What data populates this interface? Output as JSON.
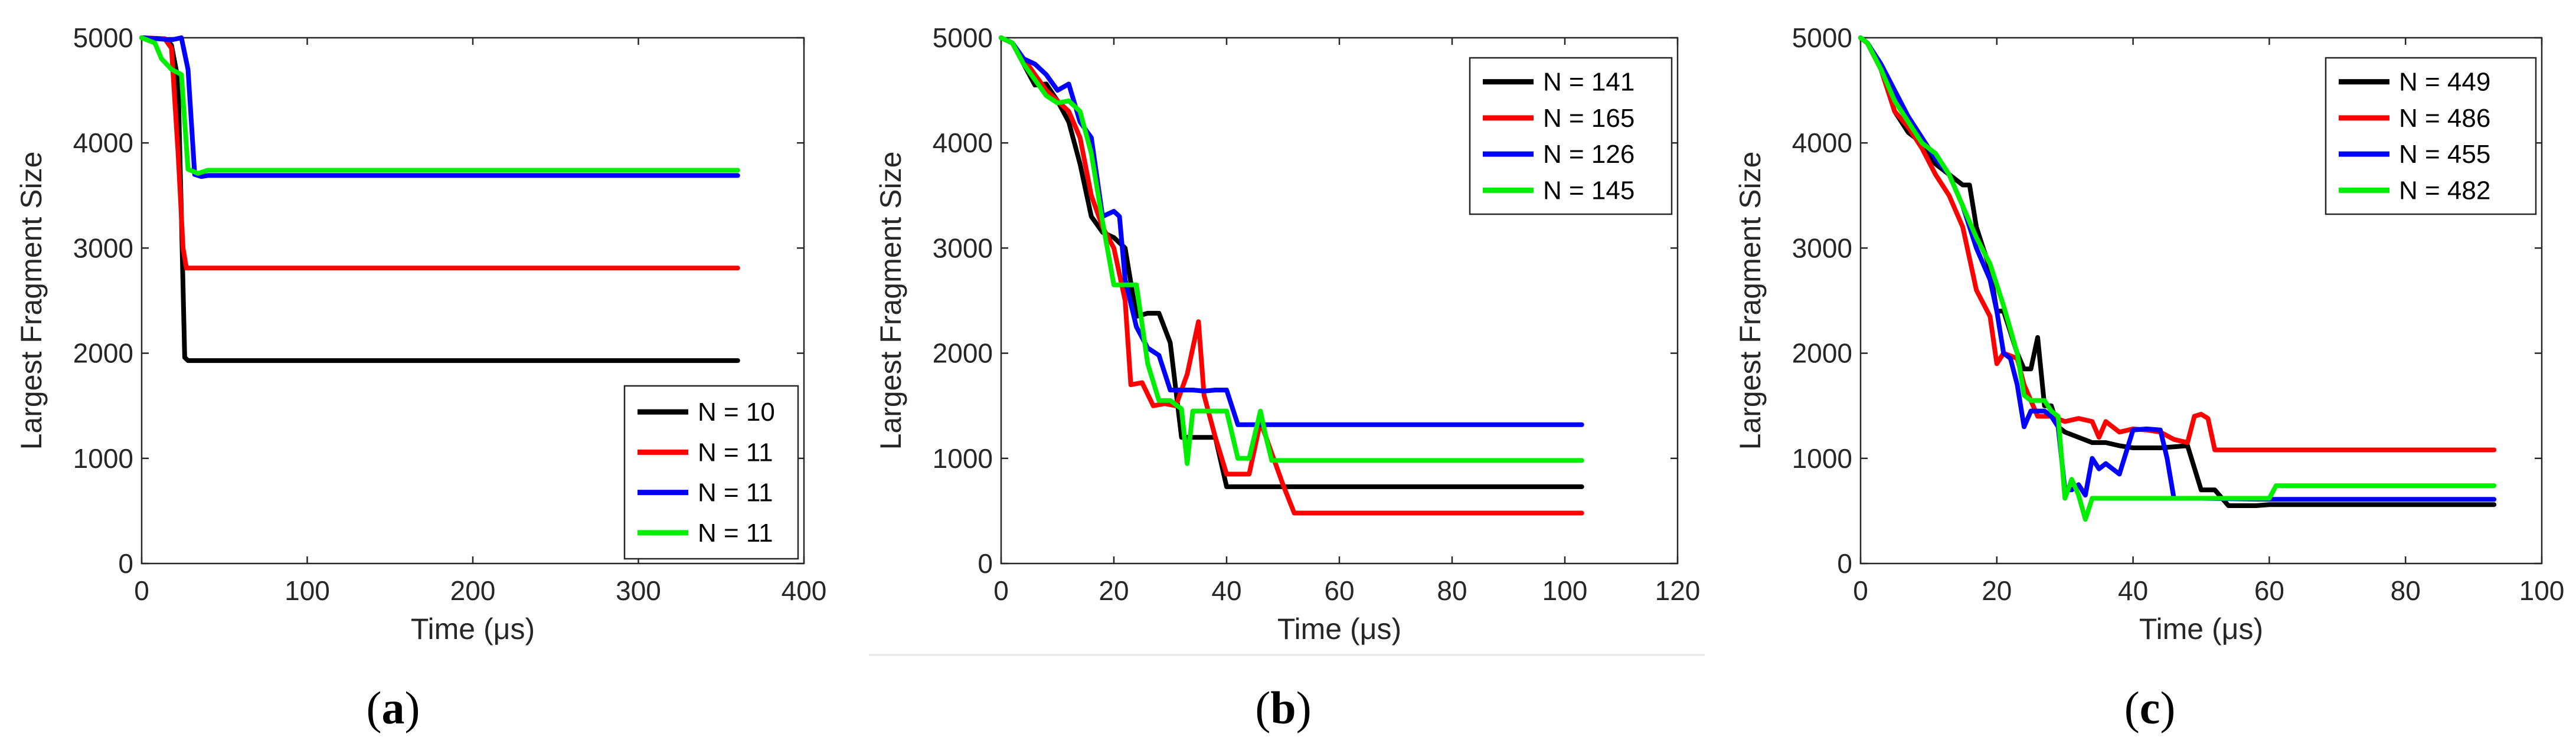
{
  "chart_data": [
    {
      "type": "line",
      "panel_label": "a",
      "xlabel": "Time (μs)",
      "ylabel": "Largest Fragment Size",
      "xlim": [
        0,
        400
      ],
      "ylim": [
        0,
        5000
      ],
      "xticks": [
        0,
        100,
        200,
        300,
        400
      ],
      "yticks": [
        0,
        1000,
        2000,
        3000,
        4000,
        5000
      ],
      "legend_position": "bottom-right",
      "series": [
        {
          "name": "N = 10",
          "color": "#000000",
          "x": [
            0,
            14,
            18,
            22,
            24,
            26,
            28,
            32,
            40,
            360
          ],
          "y": [
            5000,
            4990,
            4930,
            4600,
            3300,
            1960,
            1930,
            1930,
            1930,
            1930
          ]
        },
        {
          "name": "N = 11",
          "color": "#ff0000",
          "x": [
            0,
            14,
            18,
            22,
            25,
            27,
            30,
            360
          ],
          "y": [
            5000,
            4990,
            4900,
            3900,
            3000,
            2810,
            2810,
            2810
          ]
        },
        {
          "name": "N = 11",
          "color": "#0000ff",
          "x": [
            0,
            10,
            18,
            24,
            28,
            32,
            36,
            40,
            360
          ],
          "y": [
            5000,
            4990,
            4980,
            5000,
            4700,
            3700,
            3680,
            3690,
            3690
          ]
        },
        {
          "name": "N = 11",
          "color": "#00ee00",
          "x": [
            0,
            8,
            12,
            18,
            24,
            28,
            34,
            40,
            360
          ],
          "y": [
            5000,
            4950,
            4800,
            4700,
            4650,
            3750,
            3710,
            3740,
            3740
          ]
        }
      ]
    },
    {
      "type": "line",
      "panel_label": "b",
      "xlabel": "Time (μs)",
      "ylabel": "Largest Fragment Size",
      "xlim": [
        0,
        120
      ],
      "ylim": [
        0,
        5000
      ],
      "xticks": [
        0,
        20,
        40,
        60,
        80,
        100,
        120
      ],
      "yticks": [
        0,
        1000,
        2000,
        3000,
        4000,
        5000
      ],
      "legend_position": "top-right",
      "series": [
        {
          "name": "N = 141",
          "color": "#000000",
          "x": [
            0,
            2,
            4,
            6,
            8,
            10,
            12,
            14,
            16,
            18,
            20,
            22,
            24,
            26,
            28,
            30,
            32,
            34,
            36,
            38,
            40,
            42,
            103
          ],
          "y": [
            5000,
            4950,
            4750,
            4550,
            4560,
            4400,
            4200,
            3800,
            3300,
            3150,
            3100,
            3000,
            2350,
            2380,
            2380,
            2100,
            1200,
            1200,
            1200,
            1200,
            730,
            730,
            730
          ]
        },
        {
          "name": "N = 165",
          "color": "#ff0000",
          "x": [
            0,
            2,
            4,
            6,
            8,
            10,
            12,
            14,
            16,
            18,
            20,
            22,
            23,
            25,
            27,
            29,
            31,
            33,
            35,
            36,
            38,
            40,
            44,
            46,
            50,
            52,
            103
          ],
          "y": [
            5000,
            4950,
            4800,
            4650,
            4500,
            4400,
            4300,
            4050,
            3500,
            3200,
            3000,
            2500,
            1700,
            1720,
            1500,
            1520,
            1500,
            1800,
            2300,
            1600,
            1200,
            850,
            850,
            1350,
            750,
            480,
            480
          ]
        },
        {
          "name": "N = 126",
          "color": "#0000ff",
          "x": [
            0,
            2,
            4,
            6,
            8,
            10,
            12,
            14,
            16,
            18,
            20,
            21,
            22,
            24,
            26,
            28,
            30,
            32,
            34,
            36,
            38,
            40,
            42,
            44,
            103
          ],
          "y": [
            5000,
            4950,
            4800,
            4750,
            4650,
            4500,
            4560,
            4200,
            4050,
            3300,
            3350,
            3300,
            2700,
            2250,
            2050,
            1980,
            1650,
            1650,
            1650,
            1640,
            1650,
            1650,
            1320,
            1320,
            1320
          ]
        },
        {
          "name": "N = 145",
          "color": "#00ee00",
          "x": [
            0,
            2,
            4,
            6,
            8,
            10,
            12,
            14,
            16,
            18,
            20,
            22,
            24,
            26,
            28,
            30,
            32,
            33,
            34,
            36,
            40,
            42,
            44,
            46,
            47,
            48,
            103
          ],
          "y": [
            5000,
            4950,
            4750,
            4600,
            4450,
            4380,
            4400,
            4300,
            3900,
            3250,
            2650,
            2650,
            2650,
            1900,
            1550,
            1550,
            1470,
            950,
            1450,
            1450,
            1450,
            1000,
            1000,
            1450,
            1200,
            980,
            980
          ]
        }
      ]
    },
    {
      "type": "line",
      "panel_label": "c",
      "xlabel": "Time (μs)",
      "ylabel": "Largest Fragment Size",
      "xlim": [
        0,
        100
      ],
      "ylim": [
        0,
        5000
      ],
      "xticks": [
        0,
        20,
        40,
        60,
        80,
        100
      ],
      "yticks": [
        0,
        1000,
        2000,
        3000,
        4000,
        5000
      ],
      "legend_position": "top-right",
      "series": [
        {
          "name": "N = 449",
          "color": "#000000",
          "x": [
            0,
            1,
            3,
            5,
            7,
            9,
            11,
            13,
            15,
            16,
            17,
            19,
            20,
            21,
            22,
            23,
            24,
            25,
            26,
            27,
            28,
            29,
            30,
            32,
            34,
            36,
            38,
            40,
            44,
            48,
            50,
            52,
            54,
            58,
            60,
            93
          ],
          "y": [
            5000,
            4950,
            4700,
            4300,
            4100,
            4000,
            3800,
            3700,
            3600,
            3600,
            3200,
            2800,
            2400,
            2400,
            2200,
            2000,
            1850,
            1850,
            2150,
            1500,
            1500,
            1300,
            1250,
            1200,
            1150,
            1150,
            1120,
            1100,
            1100,
            1120,
            700,
            700,
            550,
            550,
            560,
            560
          ]
        },
        {
          "name": "N = 486",
          "color": "#ff0000",
          "x": [
            0,
            1,
            3,
            5,
            7,
            9,
            11,
            13,
            15,
            17,
            19,
            20,
            21,
            23,
            24,
            26,
            28,
            30,
            32,
            34,
            35,
            36,
            38,
            40,
            42,
            44,
            46,
            48,
            49,
            50,
            51,
            52,
            54,
            60,
            93
          ],
          "y": [
            5000,
            4950,
            4700,
            4300,
            4150,
            3950,
            3700,
            3500,
            3200,
            2600,
            2350,
            1900,
            2000,
            1950,
            1700,
            1400,
            1400,
            1350,
            1380,
            1350,
            1200,
            1350,
            1250,
            1280,
            1270,
            1250,
            1180,
            1150,
            1400,
            1420,
            1380,
            1080,
            1080,
            1080,
            1080
          ]
        },
        {
          "name": "N = 455",
          "color": "#0000ff",
          "x": [
            0,
            1,
            3,
            5,
            7,
            9,
            11,
            13,
            15,
            17,
            19,
            20,
            21,
            22,
            23,
            24,
            25,
            26,
            27,
            28,
            29,
            30,
            31,
            32,
            33,
            34,
            35,
            36,
            38,
            40,
            42,
            44,
            45,
            46,
            48,
            50,
            60,
            93
          ],
          "y": [
            5000,
            4950,
            4750,
            4500,
            4250,
            4050,
            3850,
            3700,
            3400,
            3000,
            2700,
            2400,
            2000,
            1950,
            1700,
            1300,
            1450,
            1450,
            1450,
            1400,
            1300,
            700,
            700,
            750,
            650,
            1000,
            900,
            950,
            850,
            1270,
            1280,
            1270,
            1000,
            620,
            620,
            620,
            610,
            610
          ]
        },
        {
          "name": "N = 482",
          "color": "#00ee00",
          "x": [
            0,
            1,
            3,
            5,
            7,
            9,
            11,
            13,
            15,
            17,
            19,
            21,
            23,
            24,
            25,
            26,
            27,
            28,
            29,
            30,
            31,
            32,
            33,
            34,
            36,
            40,
            44,
            48,
            50,
            54,
            58,
            60,
            61,
            93
          ],
          "y": [
            5000,
            4950,
            4700,
            4400,
            4200,
            4000,
            3900,
            3700,
            3400,
            3100,
            2850,
            2450,
            2000,
            1600,
            1550,
            1550,
            1550,
            1450,
            1400,
            620,
            800,
            650,
            420,
            620,
            620,
            620,
            620,
            620,
            620,
            620,
            620,
            620,
            740,
            740
          ]
        }
      ]
    }
  ]
}
